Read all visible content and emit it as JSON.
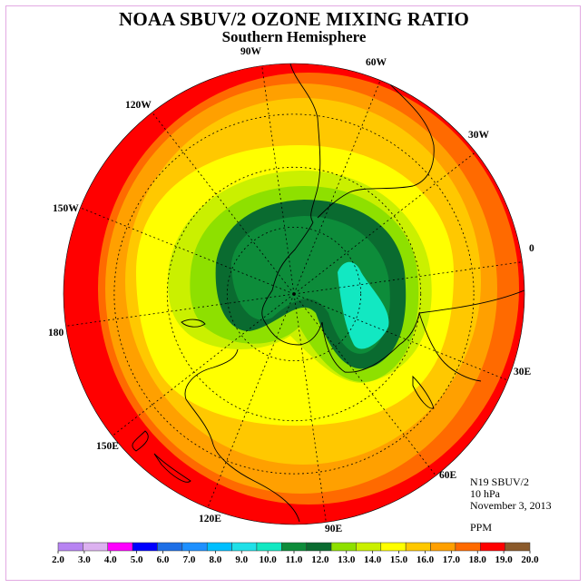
{
  "title": "NOAA SBUV/2 OZONE MIXING RATIO",
  "subtitle": "Southern Hemisphere",
  "longitude_labels": [
    "90W",
    "60W",
    "30W",
    "0",
    "30E",
    "60E",
    "90E",
    "120E",
    "150E",
    "180",
    "150W",
    "120W"
  ],
  "info": {
    "instrument": "N19 SBUV/2",
    "level": "10 hPa",
    "date": "November 3, 2013",
    "units": "PPM"
  },
  "colorbar": {
    "ticks": [
      "2.0",
      "3.0",
      "4.0",
      "5.0",
      "6.0",
      "7.0",
      "8.0",
      "9.0",
      "10.0",
      "11.0",
      "12.0",
      "13.0",
      "14.0",
      "15.0",
      "16.0",
      "17.0",
      "18.0",
      "19.0",
      "20.0"
    ],
    "colors": [
      "#b784f2",
      "#dcb1f0",
      "#ff00ff",
      "#0000ff",
      "#1e6fe6",
      "#1e90ff",
      "#00bfff",
      "#20e0e8",
      "#12e8c2",
      "#0d8c3a",
      "#0a6b30",
      "#8ee000",
      "#caf000",
      "#ffff00",
      "#ffc800",
      "#ffa000",
      "#ff6a00",
      "#ff0000",
      "#8b5a2b"
    ]
  }
}
